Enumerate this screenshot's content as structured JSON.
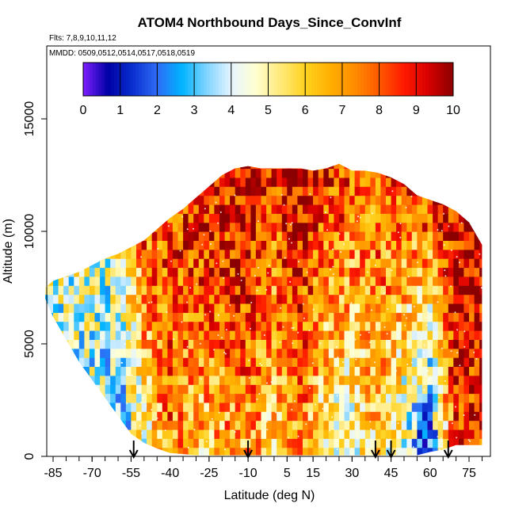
{
  "chart_data": {
    "type": "heatmap",
    "title": "ATOM4 Northbound Days_Since_ConvInf",
    "subtitle_flights": "Flts: 7,8,9,10,11,12",
    "subtitle_dates": "MMDD: 0509,0512,0514,0517,0518,0519",
    "xlabel": "Latitude (deg N)",
    "ylabel": "Altitude (m)",
    "xlim": [
      -88,
      84
    ],
    "ylim": [
      0,
      18000
    ],
    "x_ticks": [
      -85,
      -70,
      -55,
      -40,
      -25,
      -10,
      5,
      15,
      30,
      45,
      60,
      75
    ],
    "x_tick_labels": [
      "-85",
      "-70",
      "-55",
      "-40",
      "-25",
      "-10",
      "5",
      "15",
      "30",
      "45",
      "60",
      "75"
    ],
    "y_ticks": [
      0,
      5000,
      10000,
      15000
    ],
    "y_tick_labels": [
      "0",
      "5000",
      "10000",
      "15000"
    ],
    "colorbar": {
      "min": 0,
      "max": 10,
      "ticks": [
        "0",
        "1",
        "2",
        "3",
        "4",
        "5",
        "6",
        "7",
        "8",
        "9",
        "10"
      ],
      "colors": [
        "#7f1fff",
        "#0000a6",
        "#0a2fcf",
        "#2f6cf5",
        "#00b3ff",
        "#7fd4ff",
        "#e6f4ff",
        "#ffffd0",
        "#ffe97a",
        "#ffd21f",
        "#ffb000",
        "#ff8c00",
        "#ff5a00",
        "#ff1a00",
        "#d60000",
        "#8b0000"
      ]
    },
    "envelope": {
      "latitude": [
        -88,
        -85,
        -80,
        -75,
        -70,
        -65,
        -60,
        -55,
        -50,
        -45,
        -40,
        -35,
        -30,
        -25,
        -20,
        -15,
        -10,
        -5,
        0,
        5,
        10,
        15,
        20,
        25,
        30,
        35,
        40,
        45,
        50,
        55,
        60,
        65,
        70,
        75,
        80
      ],
      "top_altitude_m": [
        7500,
        7800,
        8000,
        8200,
        8500,
        8800,
        9000,
        9300,
        9600,
        10100,
        10600,
        11000,
        11500,
        12000,
        12500,
        12800,
        12900,
        12800,
        12800,
        12800,
        12800,
        12700,
        12800,
        13000,
        12700,
        12700,
        12600,
        12400,
        12100,
        11600,
        11400,
        11200,
        10900,
        10400,
        9400
      ],
      "bottom_altitude_m": [
        7000,
        6200,
        5200,
        4200,
        3400,
        2600,
        1800,
        1000,
        600,
        350,
        150,
        100,
        50,
        50,
        50,
        50,
        50,
        50,
        50,
        50,
        50,
        50,
        50,
        50,
        50,
        50,
        50,
        50,
        50,
        50,
        200,
        300,
        500,
        500,
        500
      ]
    },
    "column_profiles": [
      {
        "latitude": -85,
        "days_low": 4.2,
        "days_high": 4.5
      },
      {
        "latitude": -70,
        "days_low": 3.8,
        "days_high": 4.8
      },
      {
        "latitude": -60,
        "days_low": 2.5,
        "days_high": 5.5
      },
      {
        "latitude": -50,
        "days_low": 5.0,
        "days_high": 8.5
      },
      {
        "latitude": -40,
        "days_low": 7.5,
        "days_high": 8.5
      },
      {
        "latitude": -30,
        "days_low": 6.0,
        "days_high": 9.0
      },
      {
        "latitude": -20,
        "days_low": 6.5,
        "days_high": 9.0
      },
      {
        "latitude": -10,
        "days_low": 7.0,
        "days_high": 9.5
      },
      {
        "latitude": 0,
        "days_low": 5.5,
        "days_high": 8.5
      },
      {
        "latitude": 10,
        "days_low": 7.0,
        "days_high": 9.5
      },
      {
        "latitude": 20,
        "days_low": 5.0,
        "days_high": 8.5
      },
      {
        "latitude": 30,
        "days_low": 4.5,
        "days_high": 8.0
      },
      {
        "latitude": 40,
        "days_low": 6.0,
        "days_high": 8.0
      },
      {
        "latitude": 50,
        "days_low": 4.0,
        "days_high": 8.0
      },
      {
        "latitude": 60,
        "days_low": 1.5,
        "days_high": 9.0
      },
      {
        "latitude": 70,
        "days_low": 8.5,
        "days_high": 9.5
      },
      {
        "latitude": 78,
        "days_low": 8.5,
        "days_high": 9.8
      }
    ],
    "vertical_profile_markers_latitude": [
      -54,
      -10,
      39,
      45,
      67
    ],
    "grid": false,
    "legend": "top colorbar"
  }
}
